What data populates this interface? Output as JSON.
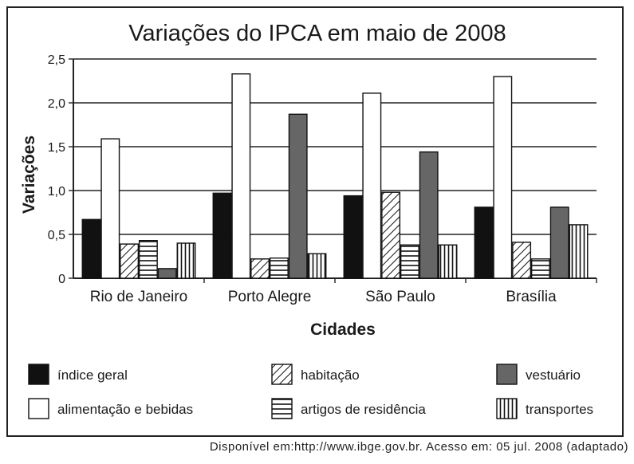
{
  "chart_data": {
    "type": "bar",
    "title": "Variações do IPCA em maio de 2008",
    "xlabel": "Cidades",
    "ylabel": "Variações",
    "categories": [
      "Rio de Janeiro",
      "Porto Alegre",
      "São Paulo",
      "Brasília"
    ],
    "ylim": [
      0,
      2.5
    ],
    "yticks": [
      "0",
      "0,5",
      "1,0",
      "1,5",
      "2,0",
      "2,5"
    ],
    "grid": true,
    "legend_position": "bottom",
    "series": [
      {
        "name": "índice geral",
        "values": [
          0.67,
          0.97,
          0.94,
          0.81
        ],
        "fill": "#111111",
        "pattern": "solid"
      },
      {
        "name": "alimentação e bebidas",
        "values": [
          1.59,
          2.33,
          2.11,
          2.3
        ],
        "fill": "#ffffff",
        "pattern": "none"
      },
      {
        "name": "habitação",
        "values": [
          0.39,
          0.22,
          0.98,
          0.41
        ],
        "fill": "#ffffff",
        "pattern": "diagonal"
      },
      {
        "name": "artigos de residência",
        "values": [
          0.43,
          0.23,
          0.38,
          0.22
        ],
        "fill": "#ffffff",
        "pattern": "horizontal"
      },
      {
        "name": "vestuário",
        "values": [
          0.11,
          1.87,
          1.44,
          0.81
        ],
        "fill": "#666666",
        "pattern": "solid"
      },
      {
        "name": "transportes",
        "values": [
          0.4,
          0.28,
          0.38,
          0.61
        ],
        "fill": "#ffffff",
        "pattern": "vertical"
      }
    ],
    "legend_order": [
      0,
      2,
      4,
      1,
      3,
      5
    ]
  },
  "source": "Disponível em:http://www.ibge.gov.br. Acesso em: 05 jul. 2008 (adaptado)"
}
